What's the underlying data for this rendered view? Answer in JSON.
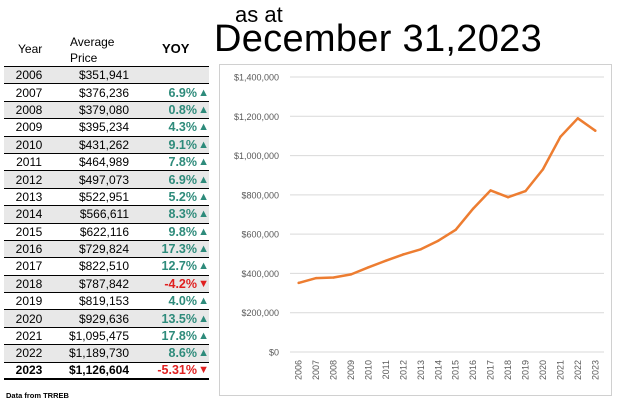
{
  "title": {
    "as_at": "as at",
    "date": "December 31,2023"
  },
  "table": {
    "headers": {
      "year": "Year",
      "avg_line1": "Average",
      "avg_line2": "Price",
      "yoy": "YOY"
    },
    "rows": [
      {
        "year": "2006",
        "price": "$351,941",
        "yoy": "",
        "dir": ""
      },
      {
        "year": "2007",
        "price": "$376,236",
        "yoy": "6.9%",
        "dir": "up"
      },
      {
        "year": "2008",
        "price": "$379,080",
        "yoy": "0.8%",
        "dir": "up"
      },
      {
        "year": "2009",
        "price": "$395,234",
        "yoy": "4.3%",
        "dir": "up"
      },
      {
        "year": "2010",
        "price": "$431,262",
        "yoy": "9.1%",
        "dir": "up"
      },
      {
        "year": "2011",
        "price": "$464,989",
        "yoy": "7.8%",
        "dir": "up"
      },
      {
        "year": "2012",
        "price": "$497,073",
        "yoy": "6.9%",
        "dir": "up"
      },
      {
        "year": "2013",
        "price": "$522,951",
        "yoy": "5.2%",
        "dir": "up"
      },
      {
        "year": "2014",
        "price": "$566,611",
        "yoy": "8.3%",
        "dir": "up"
      },
      {
        "year": "2015",
        "price": "$622,116",
        "yoy": "9.8%",
        "dir": "up"
      },
      {
        "year": "2016",
        "price": "$729,824",
        "yoy": "17.3%",
        "dir": "up"
      },
      {
        "year": "2017",
        "price": "$822,510",
        "yoy": "12.7%",
        "dir": "up"
      },
      {
        "year": "2018",
        "price": "$787,842",
        "yoy": "-4.2%",
        "dir": "down"
      },
      {
        "year": "2019",
        "price": "$819,153",
        "yoy": "4.0%",
        "dir": "up"
      },
      {
        "year": "2020",
        "price": "$929,636",
        "yoy": "13.5%",
        "dir": "up"
      },
      {
        "year": "2021",
        "price": "$1,095,475",
        "yoy": "17.8%",
        "dir": "up"
      },
      {
        "year": "2022",
        "price": "$1,189,730",
        "yoy": "8.6%",
        "dir": "up"
      },
      {
        "year": "2023",
        "price": "$1,126,604",
        "yoy": "-5.31%",
        "dir": "down"
      }
    ]
  },
  "source": "Data from TRREB",
  "colors": {
    "line": "#ed7d31",
    "up": "#2e8b7b",
    "down": "#e02020",
    "grid": "#d9d9d9",
    "axis_text": "#595959"
  },
  "chart_data": {
    "type": "line",
    "title": "",
    "xlabel": "",
    "ylabel": "",
    "x": [
      "2006",
      "2007",
      "2008",
      "2009",
      "2010",
      "2011",
      "2012",
      "2013",
      "2014",
      "2015",
      "2016",
      "2017",
      "2018",
      "2019",
      "2020",
      "2021",
      "2022",
      "2023"
    ],
    "series": [
      {
        "name": "Average Price",
        "values": [
          351941,
          376236,
          379080,
          395234,
          431262,
          464989,
          497073,
          522951,
          566611,
          622116,
          729824,
          822510,
          787842,
          819153,
          929636,
          1095475,
          1189730,
          1126604
        ]
      }
    ],
    "ylim": [
      0,
      1400000
    ],
    "yticks": [
      0,
      200000,
      400000,
      600000,
      800000,
      1000000,
      1200000,
      1400000
    ],
    "ytick_labels": [
      "$0",
      "$200,000",
      "$400,000",
      "$600,000",
      "$800,000",
      "$1,000,000",
      "$1,200,000",
      "$1,400,000"
    ],
    "grid": true,
    "legend": "none"
  }
}
